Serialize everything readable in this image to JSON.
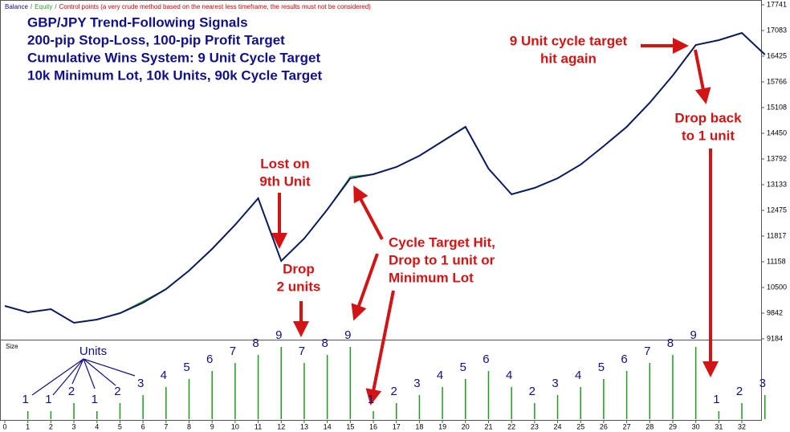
{
  "chart_data": [
    {
      "type": "line",
      "title_lines": [
        "GBP/JPY Trend-Following Signals",
        "200-pip Stop-Loss, 100-pip Profit Target",
        "Cumulative Wins System: 9 Unit Cycle Target",
        "10k Minimum Lot, 10k Units, 90k Cycle Target"
      ],
      "legend_separator": "/",
      "control_points_note": "Control points (a very crude method based on the nearest less timeframe, the results must not be considered)",
      "x": [
        0,
        1,
        2,
        3,
        4,
        5,
        6,
        7,
        8,
        9,
        10,
        11,
        12,
        13,
        14,
        15,
        16,
        17,
        18,
        19,
        20,
        21,
        22,
        23,
        24,
        25,
        26,
        27,
        28,
        29,
        30,
        31,
        32,
        33
      ],
      "series": [
        {
          "name": "Equity",
          "color": "#2e9e2e",
          "values": [
            10027,
            9863,
            9945,
            9595,
            9678,
            9842,
            10150,
            10459,
            10932,
            11488,
            12105,
            12784,
            11179,
            11755,
            12496,
            13340,
            13401,
            13586,
            13874,
            14244,
            14615,
            13545,
            12887,
            13051,
            13298,
            13648,
            14121,
            14615,
            15232,
            15931,
            16713,
            16836,
            17021,
            16466
          ]
        },
        {
          "name": "Balance",
          "color": "#0a1a5e",
          "values": [
            10027,
            9863,
            9945,
            9595,
            9678,
            9842,
            10110,
            10459,
            10932,
            11488,
            12105,
            12784,
            11179,
            11755,
            12496,
            13298,
            13401,
            13586,
            13874,
            14244,
            14615,
            13545,
            12887,
            13051,
            13298,
            13648,
            14121,
            14615,
            15232,
            15931,
            16713,
            16836,
            17021,
            16466
          ]
        }
      ],
      "xlim": [
        0,
        32.8
      ],
      "ylim": [
        9184,
        17741
      ],
      "yticks": [
        9184,
        9842,
        10500,
        11158,
        11817,
        12475,
        13133,
        13792,
        14450,
        15108,
        15766,
        16425,
        17083,
        17741
      ],
      "annotations": [
        {
          "lines": [
            "Lost on",
            "9th Unit"
          ]
        },
        {
          "lines": [
            "Drop",
            "2 units"
          ]
        },
        {
          "lines": [
            "Cycle Target Hit,",
            "Drop to 1 unit or",
            "Minimum Lot"
          ]
        },
        {
          "lines": [
            "9 Unit cycle target",
            "hit again"
          ]
        },
        {
          "lines": [
            "Drop back",
            "to 1 unit"
          ]
        }
      ]
    },
    {
      "type": "bar",
      "axis_label": "Size",
      "units_label": "Units",
      "color": "#1f9a1f",
      "x": [
        1,
        2,
        3,
        4,
        5,
        6,
        7,
        8,
        9,
        10,
        11,
        12,
        13,
        14,
        15,
        16,
        17,
        18,
        19,
        20,
        21,
        22,
        23,
        24,
        25,
        26,
        27,
        28,
        29,
        30,
        31,
        32,
        33
      ],
      "values": [
        1,
        1,
        2,
        1,
        2,
        3,
        4,
        5,
        6,
        7,
        8,
        9,
        7,
        8,
        9,
        1,
        2,
        3,
        4,
        5,
        6,
        4,
        2,
        3,
        4,
        5,
        6,
        7,
        8,
        9,
        1,
        2,
        3
      ],
      "xlim": [
        0,
        32.8
      ],
      "ylim": [
        0,
        9.8
      ],
      "xticks": [
        0,
        1,
        2,
        3,
        4,
        5,
        6,
        7,
        8,
        9,
        10,
        11,
        12,
        13,
        14,
        15,
        16,
        17,
        18,
        19,
        20,
        21,
        22,
        23,
        24,
        25,
        26,
        27,
        28,
        29,
        30,
        31,
        32
      ]
    }
  ]
}
